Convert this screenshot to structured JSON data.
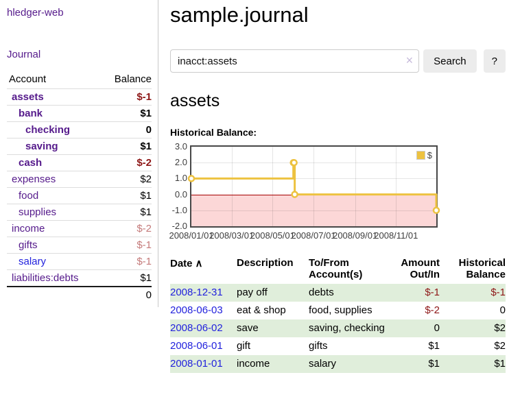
{
  "colors": {
    "link_purple": "#551a8b",
    "link_blue": "#2222dd",
    "negative_strong": "#8d1616",
    "negative_muted": "#c47a7a",
    "row_stripe_green": "#e0eedb",
    "chart_line": "#edc240",
    "chart_negative_fill": "#fcd7d7",
    "chart_zero_line": "#a40000"
  },
  "sidebar": {
    "app_title": "hledger-web",
    "nav_journal": "Journal",
    "accounts": {
      "header_account": "Account",
      "header_balance": "Balance",
      "rows": [
        {
          "name": "assets",
          "balance": "$-1",
          "level": 1,
          "bold": true,
          "neg": "strong",
          "link": "purple"
        },
        {
          "name": "bank",
          "balance": "$1",
          "level": 2,
          "bold": true,
          "neg": "none",
          "link": "purple"
        },
        {
          "name": "checking",
          "balance": "0",
          "level": 3,
          "bold": true,
          "neg": "none",
          "link": "purple"
        },
        {
          "name": "saving",
          "balance": "$1",
          "level": 3,
          "bold": true,
          "neg": "none",
          "link": "purple"
        },
        {
          "name": "cash",
          "balance": "$-2",
          "level": 2,
          "bold": true,
          "neg": "strong",
          "link": "purple"
        },
        {
          "name": "expenses",
          "balance": "$2",
          "level": 1,
          "bold": false,
          "neg": "none",
          "link": "purple"
        },
        {
          "name": "food",
          "balance": "$1",
          "level": 2,
          "bold": false,
          "neg": "none",
          "link": "purple"
        },
        {
          "name": "supplies",
          "balance": "$1",
          "level": 2,
          "bold": false,
          "neg": "none",
          "link": "purple"
        },
        {
          "name": "income",
          "balance": "$-2",
          "level": 1,
          "bold": false,
          "neg": "muted",
          "link": "purple"
        },
        {
          "name": "gifts",
          "balance": "$-1",
          "level": 2,
          "bold": false,
          "neg": "muted",
          "link": "purple"
        },
        {
          "name": "salary",
          "balance": "$-1",
          "level": 2,
          "bold": false,
          "neg": "muted",
          "link": "blue"
        },
        {
          "name": "liabilities:debts",
          "balance": "$1",
          "level": 1,
          "bold": false,
          "neg": "none",
          "link": "purple"
        }
      ],
      "total": "0"
    }
  },
  "main": {
    "title": "sample.journal",
    "search": {
      "value": "inacct:assets",
      "clear_icon": "×",
      "search_button": "Search",
      "help_button": "?"
    },
    "account_heading": "assets",
    "chart_label": "Historical Balance:",
    "register": {
      "headers": {
        "date": "Date",
        "sort_arrow": "∧",
        "description": "Description",
        "accounts": [
          "To/From",
          "Account(s)"
        ],
        "amount": [
          "Amount",
          "Out/In"
        ],
        "balance": [
          "Historical",
          "Balance"
        ]
      },
      "rows": [
        {
          "date": "2008-12-31",
          "description": "pay off",
          "accounts": "debts",
          "amount": "$-1",
          "amount_neg": true,
          "balance": "$-1",
          "balance_neg": true
        },
        {
          "date": "2008-06-03",
          "description": "eat & shop",
          "accounts": "food, supplies",
          "amount": "$-2",
          "amount_neg": true,
          "balance": "0",
          "balance_neg": false
        },
        {
          "date": "2008-06-02",
          "description": "save",
          "accounts": "saving, checking",
          "amount": "0",
          "amount_neg": false,
          "balance": "$2",
          "balance_neg": false
        },
        {
          "date": "2008-06-01",
          "description": "gift",
          "accounts": "gifts",
          "amount": "$1",
          "amount_neg": false,
          "balance": "$2",
          "balance_neg": false
        },
        {
          "date": "2008-01-01",
          "description": "income",
          "accounts": "salary",
          "amount": "$1",
          "amount_neg": false,
          "balance": "$1",
          "balance_neg": false
        }
      ]
    }
  },
  "chart_data": {
    "type": "line",
    "title": "Historical Balance",
    "series": [
      {
        "name": "$",
        "color": "#edc240",
        "style": "steps",
        "points": [
          [
            "2008-01-01",
            1
          ],
          [
            "2008-06-01",
            2
          ],
          [
            "2008-06-02",
            2
          ],
          [
            "2008-06-03",
            0
          ],
          [
            "2008-12-31",
            -1
          ]
        ]
      }
    ],
    "x_range": [
      "2008-01-01",
      "2008-12-31"
    ],
    "ylim": [
      -2,
      3
    ],
    "yticks": [
      3,
      2,
      1,
      0,
      -1,
      -2
    ],
    "xticks": [
      "2008/01/01",
      "2008/03/01",
      "2008/05/01",
      "2008/07/01",
      "2008/09/01",
      "2008/11/01"
    ],
    "legend": {
      "position": "top-right",
      "label": "$"
    },
    "grid": true,
    "negative_region_below": 0
  }
}
